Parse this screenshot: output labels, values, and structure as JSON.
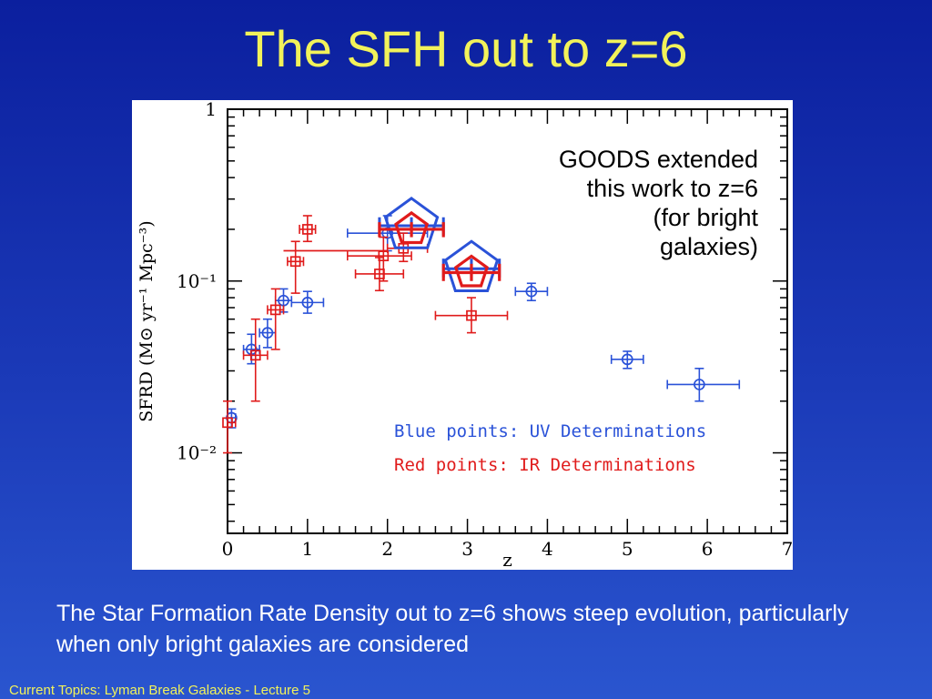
{
  "slide": {
    "title": "The SFH out to z=6",
    "annotation_lines": [
      "GOODS extended",
      "this work to z=6",
      "(for bright",
      "galaxies)"
    ],
    "caption": "The Star Formation Rate Density out to z=6 shows steep evolution, particularly when only bright galaxies are considered",
    "footer": "Current Topics:  Lyman Break Galaxies - Lecture 5",
    "colors": {
      "background": "#1b3ab8",
      "title": "#f2f25a",
      "footer": "#f2f25a",
      "caption": "#ffffff"
    }
  },
  "chart_data": {
    "type": "scatter",
    "xlabel": "z",
    "ylabel": "SFRD (M⊙ yr⁻¹ Mpc⁻³)",
    "xlim": [
      0,
      7
    ],
    "ylim": [
      0.0034,
      1
    ],
    "yscale": "log",
    "x_ticks": [
      "0",
      "1",
      "2",
      "3",
      "4",
      "5",
      "6",
      "7"
    ],
    "y_ticks": [
      {
        "value": 1,
        "label": "1"
      },
      {
        "value": 0.1,
        "label": "10⁻¹"
      },
      {
        "value": 0.01,
        "label": "10⁻²"
      }
    ],
    "legend": [
      {
        "text": "Blue points: UV Determinations",
        "color": "#2a52d8"
      },
      {
        "text": "Red points: IR Determinations",
        "color": "#e01b1b"
      }
    ],
    "series": [
      {
        "name": "Blue points: UV Determinations",
        "color": "#2a52d8",
        "marker": "circle",
        "points": [
          {
            "x": 0.05,
            "y": 0.016,
            "xlo": 0.0,
            "xhi": 0.1,
            "ylo": 0.014,
            "yhi": 0.018
          },
          {
            "x": 0.3,
            "y": 0.04,
            "xlo": 0.2,
            "xhi": 0.4,
            "ylo": 0.033,
            "yhi": 0.049
          },
          {
            "x": 0.5,
            "y": 0.05,
            "xlo": 0.4,
            "xhi": 0.6,
            "ylo": 0.041,
            "yhi": 0.06
          },
          {
            "x": 0.7,
            "y": 0.077,
            "xlo": 0.6,
            "xhi": 0.8,
            "ylo": 0.066,
            "yhi": 0.09
          },
          {
            "x": 1.0,
            "y": 0.075,
            "xlo": 0.8,
            "xhi": 1.2,
            "ylo": 0.065,
            "yhi": 0.087
          },
          {
            "x": 2.0,
            "y": 0.19,
            "xlo": 1.5,
            "xhi": 2.5,
            "ylo": 0.15,
            "yhi": 0.24
          },
          {
            "x": 3.8,
            "y": 0.087,
            "xlo": 3.6,
            "xhi": 4.0,
            "ylo": 0.077,
            "yhi": 0.097
          },
          {
            "x": 5.0,
            "y": 0.035,
            "xlo": 4.8,
            "xhi": 5.2,
            "ylo": 0.031,
            "yhi": 0.039
          },
          {
            "x": 5.9,
            "y": 0.025,
            "xlo": 5.5,
            "xhi": 6.4,
            "ylo": 0.02,
            "yhi": 0.031
          }
        ]
      },
      {
        "name": "Red points: IR Determinations",
        "color": "#e01b1b",
        "marker": "square",
        "points": [
          {
            "x": 0.0,
            "y": 0.015,
            "xlo": 0.0,
            "xhi": 0.1,
            "ylo": 0.01,
            "yhi": 0.02
          },
          {
            "x": 0.35,
            "y": 0.037,
            "xlo": 0.2,
            "xhi": 0.5,
            "ylo": 0.02,
            "yhi": 0.06
          },
          {
            "x": 0.6,
            "y": 0.068,
            "xlo": 0.5,
            "xhi": 0.7,
            "ylo": 0.04,
            "yhi": 0.09
          },
          {
            "x": 0.85,
            "y": 0.13,
            "xlo": 0.75,
            "xhi": 0.95,
            "ylo": 0.085,
            "yhi": 0.17
          },
          {
            "x": 1.0,
            "y": 0.2,
            "xlo": 0.9,
            "xhi": 1.1,
            "ylo": 0.17,
            "yhi": 0.24
          },
          {
            "x": 1.95,
            "y": 0.14,
            "xlo": 1.5,
            "xhi": 2.3,
            "ylo": 0.1,
            "yhi": 0.18
          },
          {
            "x": 1.9,
            "y": 0.11,
            "xlo": 1.6,
            "xhi": 2.2,
            "ylo": 0.088,
            "yhi": 0.137
          },
          {
            "x": 2.2,
            "y": 0.155,
            "xlo": 2.0,
            "xhi": 2.5,
            "ylo": 0.13,
            "yhi": 0.19
          },
          {
            "x": 3.05,
            "y": 0.063,
            "xlo": 2.6,
            "xhi": 3.5,
            "ylo": 0.05,
            "yhi": 0.08
          }
        ],
        "step_segment": {
          "x0": 0.7,
          "x1": 2.0,
          "y": 0.15
        }
      }
    ],
    "pentagons": [
      {
        "color": "#2a52d8",
        "x": 2.3,
        "y": 0.21,
        "size": "large",
        "xlo": 1.9,
        "xhi": 2.7,
        "ylo": 0.185,
        "yhi": 0.235
      },
      {
        "color": "#e01b1b",
        "x": 2.3,
        "y": 0.2,
        "size": "small",
        "xlo": 1.9,
        "xhi": 2.7,
        "ylo": 0.18,
        "yhi": 0.22
      },
      {
        "color": "#2a52d8",
        "x": 3.05,
        "y": 0.118,
        "size": "large",
        "xlo": 2.7,
        "xhi": 3.4,
        "ylo": 0.105,
        "yhi": 0.135
      },
      {
        "color": "#e01b1b",
        "x": 3.05,
        "y": 0.112,
        "size": "small",
        "xlo": 2.7,
        "xhi": 3.4,
        "ylo": 0.1,
        "yhi": 0.126
      }
    ]
  }
}
